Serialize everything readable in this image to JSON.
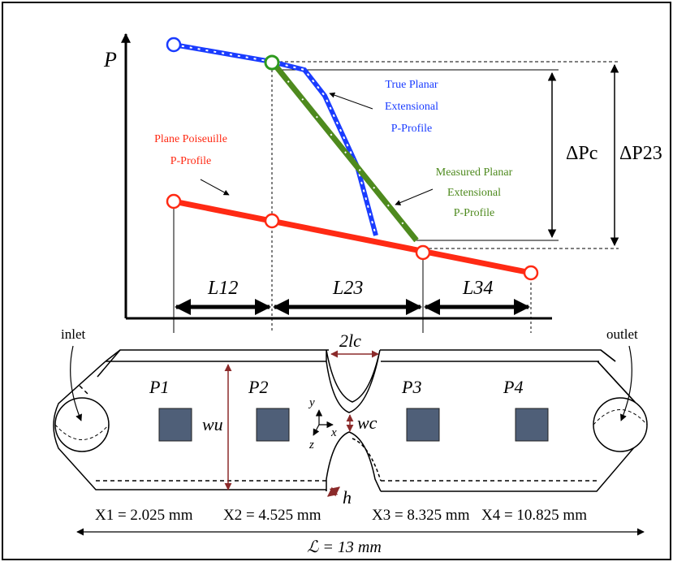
{
  "plot": {
    "y_axis_label": "P",
    "colors": {
      "true_profile": "#1a3cff",
      "measured_profile": "#4e8a1e",
      "poiseuille": "#ff2a14",
      "channel_fill": "#ffffff",
      "sensor": "#4f5f78",
      "dimension_line": "#8b2a2a"
    },
    "annotations": {
      "true_planar": [
        "True Planar",
        "Extensional",
        "P-Profile"
      ],
      "plane_poiseuille": [
        "Plane Poiseuille",
        "P-Profile"
      ],
      "measured_planar": [
        "Measured Planar",
        "Extensional",
        "P-Profile"
      ],
      "delta_pc": "ΔPc",
      "delta_p23": "ΔP23"
    },
    "spans": {
      "l12": "L12",
      "l23": "L23",
      "l34": "L34"
    }
  },
  "channel": {
    "inlet": "inlet",
    "outlet": "outlet",
    "sensors": [
      "P1",
      "P2",
      "P3",
      "P4"
    ],
    "contraction_length": "2lc",
    "upstream_width": "wu",
    "contraction_width": "wc",
    "depth": "h",
    "axes": {
      "x": "x",
      "y": "y",
      "z": "z"
    },
    "positions": [
      "X1 = 2.025 mm",
      "X2 = 4.525 mm",
      "X3 = 8.325 mm",
      "X4 = 10.825 mm"
    ],
    "total_length": "ℒ = 13 mm"
  }
}
